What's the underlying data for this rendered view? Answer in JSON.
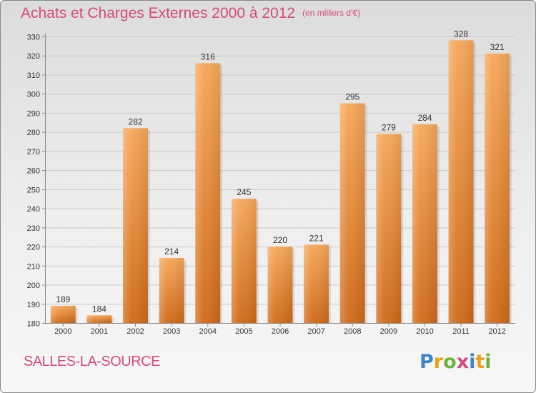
{
  "title": "Achats et Charges Externes 2000 à 2012",
  "subtitle": "(en milliers d'€)",
  "commune": "SALLES-LA-SOURCE",
  "brand": {
    "letters": [
      "P",
      "r",
      "o",
      "x",
      "i",
      "t",
      "i"
    ],
    "colors": [
      "#3a86c8",
      "#e8a21c",
      "#6cb33e",
      "#d64a7f",
      "#3a86c8",
      "#e8a21c",
      "#6cb33e"
    ]
  },
  "colors": {
    "accent": "#d64a7f",
    "bar_light": "#f7a85a",
    "bar_dark": "#d06a18"
  },
  "chart_data": {
    "type": "bar",
    "categories": [
      "2000",
      "2001",
      "2002",
      "2003",
      "2004",
      "2005",
      "2006",
      "2007",
      "2008",
      "2009",
      "2010",
      "2011",
      "2012"
    ],
    "values": [
      189,
      184,
      282,
      214,
      316,
      245,
      220,
      221,
      295,
      279,
      284,
      328,
      321
    ],
    "title": "Achats et Charges Externes 2000 à 2012",
    "subtitle": "(en milliers d'€)",
    "xlabel": "",
    "ylabel": "",
    "ylim": [
      180,
      330
    ],
    "yticks": [
      180,
      190,
      200,
      210,
      220,
      230,
      240,
      250,
      260,
      270,
      280,
      290,
      300,
      310,
      320,
      330
    ],
    "grid": true,
    "data_labels": true
  }
}
